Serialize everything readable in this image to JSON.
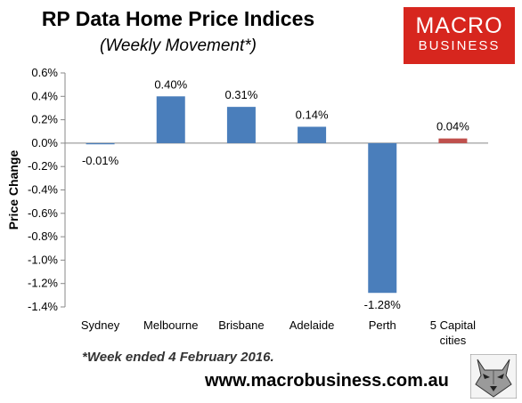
{
  "header": {
    "title": "RP Data Home Price Indices",
    "subtitle": "(Weekly Movement*)"
  },
  "logo": {
    "line1": "MACRO",
    "line2": "BUSINESS",
    "color": "#d7261e"
  },
  "footer": {
    "footnote": "*Week ended 4 February 2016.",
    "website": "www.macrobusiness.com.au",
    "mascot_icon": "wolf-head-icon"
  },
  "chart_data": {
    "type": "bar",
    "title": "RP Data Home Price Indices",
    "subtitle": "(Weekly Movement*)",
    "ylabel": "Price Change",
    "xlabel": "",
    "categories": [
      "Sydney",
      "Melbourne",
      "Brisbane",
      "Adelaide",
      "Perth",
      "5 Capital cities"
    ],
    "values": [
      -0.01,
      0.4,
      0.31,
      0.14,
      -1.28,
      0.04
    ],
    "data_labels": [
      "-0.01%",
      "0.40%",
      "0.31%",
      "0.14%",
      "-1.28%",
      "0.04%"
    ],
    "ylim": [
      -1.4,
      0.6
    ],
    "yticks": [
      0.6,
      0.4,
      0.2,
      0.0,
      -0.2,
      -0.4,
      -0.6,
      -0.8,
      -1.0,
      -1.2,
      -1.4
    ],
    "ytick_labels": [
      "0.6%",
      "0.4%",
      "0.2%",
      "0.0%",
      "-0.2%",
      "-0.4%",
      "-0.6%",
      "-0.8%",
      "-1.0%",
      "-1.2%",
      "-1.4%"
    ],
    "bar_color": "#4a7ebb",
    "highlight_color": "#c0504d",
    "highlight_index": 5,
    "grid": false
  }
}
